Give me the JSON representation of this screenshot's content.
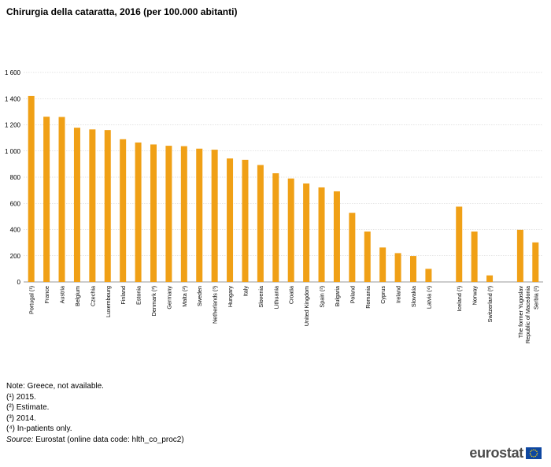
{
  "title": "Chirurgia della cataratta, 2016 (per 100.000 abitanti)",
  "chart_data": {
    "type": "bar",
    "categories": [
      "Portugal (¹)",
      "France",
      "Austria",
      "Belgium",
      "Czechia",
      "Luxembourg",
      "Finland",
      "Estonia",
      "Denmark (²)",
      "Germany",
      "Malta (²)",
      "Sweden",
      "Netherlands (³)",
      "Hungary",
      "Italy",
      "Slovenia",
      "Lithuania",
      "Croatia",
      "United Kingdom",
      "Spain (²)",
      "Bulgaria",
      "Poland",
      "Romania",
      "Cyprus",
      "Ireland",
      "Slovakia",
      "Latvia (⁴)",
      "",
      "Iceland (¹)",
      "Norway",
      "Switzerland (²)",
      "",
      "The former Yugoslav Republic of Macedonia",
      "Serbia (²)"
    ],
    "values": [
      1420,
      1262,
      1260,
      1178,
      1165,
      1160,
      1090,
      1065,
      1050,
      1040,
      1037,
      1018,
      1010,
      943,
      933,
      893,
      830,
      790,
      752,
      722,
      692,
      528,
      385,
      263,
      220,
      198,
      100,
      null,
      575,
      385,
      50,
      null,
      398,
      302
    ],
    "ylim": [
      0,
      1600
    ],
    "yticks": [
      "0",
      "200",
      "400",
      "600",
      "800",
      "1 000",
      "1 200",
      "1 400",
      "1 600"
    ],
    "ytick_values": [
      0,
      200,
      400,
      600,
      800,
      1000,
      1200,
      1400,
      1600
    ],
    "grid": true,
    "bar_color": "#f0a016",
    "xlabel": "",
    "ylabel": ""
  },
  "notes": {
    "lines": [
      "Note: Greece, not available.",
      "(¹) 2015.",
      "(²) Estimate.",
      "(³) 2014.",
      "(⁴) In-patients only."
    ],
    "source_label": "Source:",
    "source_text": " Eurostat (online data code: hlth_co_proc2)"
  },
  "logo": {
    "text": "eurostat",
    "flag_color": "#0e47a1",
    "star_color": "#ffd600"
  }
}
